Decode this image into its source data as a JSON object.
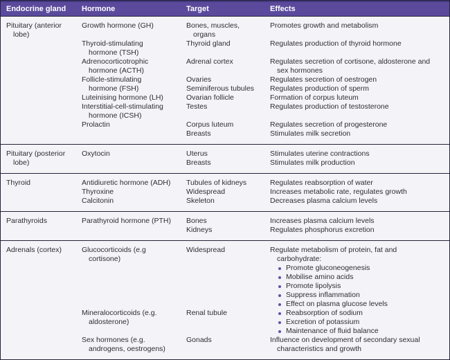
{
  "colors": {
    "header_bg": "#5b4a9c",
    "header_top_edge": "#463781",
    "header_text": "#ffffff",
    "body_bg": "#f4f3f8",
    "grid_line": "#23233a",
    "text": "#2e2e2e",
    "bullet": "#5c55a6"
  },
  "table": {
    "headers": [
      "Endocrine gland",
      "Hormone",
      "Target",
      "Effects"
    ],
    "sections": [
      {
        "gland_lines": [
          "Pituitary (anterior",
          "lobe)"
        ],
        "rows": [
          {
            "hormone_lines": [
              "Growth hormone (GH)"
            ],
            "targets": [
              [
                "Bones, muscles,",
                "organs"
              ]
            ],
            "effects": [
              {
                "bullet": false,
                "lines": [
                  "Promotes growth and metabolism"
                ]
              }
            ]
          },
          {
            "hormone_lines": [
              "Thyroid-stimulating",
              "hormone (TSH)"
            ],
            "targets": [
              [
                "Thyroid gland"
              ]
            ],
            "effects": [
              {
                "bullet": false,
                "lines": [
                  "Regulates production of thyroid hormone"
                ]
              }
            ]
          },
          {
            "hormone_lines": [
              "Adrenocorticotrophic",
              "hormone (ACTH)"
            ],
            "targets": [
              [
                "Adrenal cortex"
              ]
            ],
            "effects": [
              {
                "bullet": false,
                "lines": [
                  "Regulates secretion of cortisone, aldosterone and",
                  "sex hormones"
                ]
              }
            ]
          },
          {
            "hormone_lines": [
              "Follicle-stimulating",
              "hormone (FSH)"
            ],
            "targets": [
              [
                "Ovaries"
              ],
              [
                "Seminiferous tubules"
              ]
            ],
            "effects": [
              {
                "bullet": false,
                "lines": [
                  "Regulates secretion of oestrogen"
                ]
              },
              {
                "bullet": false,
                "lines": [
                  "Regulates production of sperm"
                ]
              }
            ]
          },
          {
            "hormone_lines": [
              "Luteinising hormone (LH)"
            ],
            "targets": [
              [
                "Ovarian follicle"
              ]
            ],
            "effects": [
              {
                "bullet": false,
                "lines": [
                  "Formation of corpus luteum"
                ]
              }
            ]
          },
          {
            "hormone_lines": [
              "Interstitial-cell-stimulating",
              "hormone (ICSH)"
            ],
            "targets": [
              [
                "Testes"
              ]
            ],
            "effects": [
              {
                "bullet": false,
                "lines": [
                  "Regulates production of testosterone"
                ]
              }
            ]
          },
          {
            "hormone_lines": [
              "Prolactin"
            ],
            "targets": [
              [
                "Corpus luteum"
              ],
              [
                "Breasts"
              ]
            ],
            "effects": [
              {
                "bullet": false,
                "lines": [
                  "Regulates secretion of progesterone"
                ]
              },
              {
                "bullet": false,
                "lines": [
                  "Stimulates milk secretion"
                ]
              }
            ]
          }
        ]
      },
      {
        "gland_lines": [
          "Pituitary (posterior",
          "lobe)"
        ],
        "rows": [
          {
            "hormone_lines": [
              "Oxytocin"
            ],
            "targets": [
              [
                "Uterus"
              ],
              [
                "Breasts"
              ]
            ],
            "effects": [
              {
                "bullet": false,
                "lines": [
                  "Stimulates uterine contractions"
                ]
              },
              {
                "bullet": false,
                "lines": [
                  "Stimulates milk production"
                ]
              }
            ]
          }
        ]
      },
      {
        "gland_lines": [
          "Thyroid"
        ],
        "rows": [
          {
            "hormone_lines": [
              "Antidiuretic hormone (ADH)"
            ],
            "targets": [
              [
                "Tubules of kidneys"
              ]
            ],
            "effects": [
              {
                "bullet": false,
                "lines": [
                  "Regulates reabsorption of water"
                ]
              }
            ]
          },
          {
            "hormone_lines": [
              "Thyroxine"
            ],
            "targets": [
              [
                "Widespread"
              ]
            ],
            "effects": [
              {
                "bullet": false,
                "lines": [
                  "Increases metabolic rate, regulates growth"
                ]
              }
            ]
          },
          {
            "hormone_lines": [
              "Calcitonin"
            ],
            "targets": [
              [
                "Skeleton"
              ]
            ],
            "effects": [
              {
                "bullet": false,
                "lines": [
                  "Decreases plasma calcium levels"
                ]
              }
            ]
          }
        ]
      },
      {
        "gland_lines": [
          "Parathyroids"
        ],
        "rows": [
          {
            "hormone_lines": [
              "Parathyroid hormone (PTH)"
            ],
            "targets": [
              [
                "Bones"
              ],
              [
                "Kidneys"
              ]
            ],
            "effects": [
              {
                "bullet": false,
                "lines": [
                  "Increases plasma calcium levels"
                ]
              },
              {
                "bullet": false,
                "lines": [
                  "Regulates phosphorus excretion"
                ]
              }
            ]
          }
        ]
      },
      {
        "gland_lines": [
          "Adrenals (cortex)"
        ],
        "rows": [
          {
            "hormone_lines": [
              "Glucocorticoids (e.g",
              "cortisone)"
            ],
            "targets": [
              [
                "Widespread"
              ]
            ],
            "effects": [
              {
                "bullet": false,
                "lines": [
                  "Regulate metabolism of protein, fat and",
                  "carbohydrate:"
                ]
              },
              {
                "bullet": true,
                "lines": [
                  "Promote gluconeogenesis"
                ]
              },
              {
                "bullet": true,
                "lines": [
                  "Mobilise amino acids"
                ]
              },
              {
                "bullet": true,
                "lines": [
                  "Promote lipolysis"
                ]
              },
              {
                "bullet": true,
                "lines": [
                  "Suppress inflammation"
                ]
              },
              {
                "bullet": true,
                "lines": [
                  "Effect on plasma glucose levels"
                ]
              }
            ]
          },
          {
            "hormone_lines": [
              "Mineralocorticoids (e.g.",
              "aldosterone)"
            ],
            "targets": [
              [
                "Renal tubule"
              ]
            ],
            "effects": [
              {
                "bullet": true,
                "lines": [
                  "Reabsorption of sodium"
                ]
              },
              {
                "bullet": true,
                "lines": [
                  "Excretion of potassium"
                ]
              },
              {
                "bullet": true,
                "lines": [
                  "Maintenance of fluid balance"
                ]
              }
            ]
          },
          {
            "hormone_lines": [
              "Sex hormones (e.g.",
              "androgens, oestrogens)"
            ],
            "targets": [
              [
                "Gonads"
              ]
            ],
            "effects": [
              {
                "bullet": false,
                "lines": [
                  "Influence on development of secondary sexual",
                  "characteristics and growth"
                ]
              }
            ]
          }
        ]
      }
    ]
  }
}
